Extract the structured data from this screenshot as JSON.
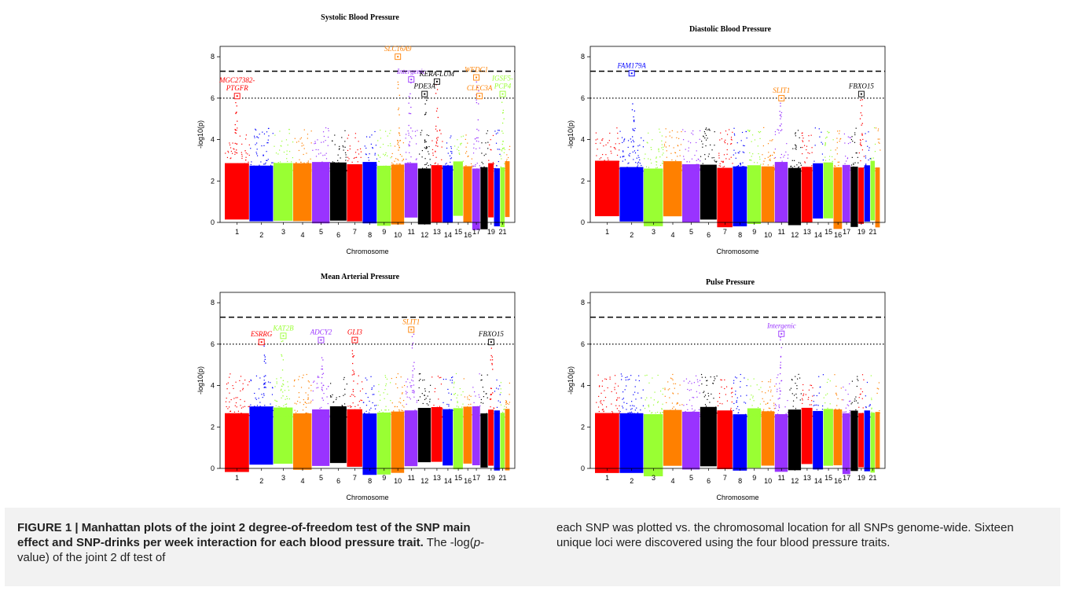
{
  "caption": {
    "figure_label": "FIGURE 1 | ",
    "bold_title": "Manhattan plots of the joint 2 degree-of-freedom test of the SNP main effect and SNP-drinks per week interaction for each blood pressure trait.",
    "left_rest_1": " The -log(",
    "left_p": "p",
    "left_rest_2": "-value) of the joint 2 df test of",
    "right_text": "each SNP was plotted vs. the chromosomal location for all SNPs genome-wide. Sixteen unique loci were discovered using the four blood pressure traits."
  },
  "chart_data": [
    {
      "type": "scatter",
      "title": "Systolic Blood Pressure",
      "xlabel": "Chromosome",
      "ylabel": "-log10(p)",
      "ylim": [
        0,
        8.5
      ],
      "yticks": [
        0,
        2,
        4,
        6,
        8
      ],
      "xtick_labels": [
        "1",
        "2",
        "3",
        "4",
        "5",
        "6",
        "7",
        "8",
        "9",
        "10",
        "11",
        "12",
        "13",
        "14",
        "15",
        "16",
        "17",
        "19",
        "21"
      ],
      "genome_wide_threshold": 7.3,
      "suggestive_threshold": 6.0,
      "chromosome_colors": [
        "#ff0000",
        "#0000ff",
        "#99ff33",
        "#ff8000",
        "#9933ff",
        "#000000"
      ],
      "peaks": [
        {
          "chr": 1,
          "peak": 6.1,
          "label": "MGC27382-PTGFR",
          "label_lines": [
            "MGC27382-",
            "PTGFR"
          ],
          "color": "#ff0000"
        },
        {
          "chr": 10,
          "peak": 8.0,
          "label": "SLC16A9",
          "color": "#ff8000"
        },
        {
          "chr": 11,
          "peak": 6.9,
          "label": "Intergenic",
          "color": "#9933ff"
        },
        {
          "chr": 12,
          "peak": 6.2,
          "label": "PDE3A",
          "color": "#000000"
        },
        {
          "chr": 13,
          "peak": 6.8,
          "label": "KERA-LUM",
          "color": "#000000"
        },
        {
          "chr": 17,
          "peak": 7.0,
          "label": "WFDC1",
          "color": "#ff8000"
        },
        {
          "chr": 17,
          "peak": 6.1,
          "label": "CLEC3A",
          "color": "#ff8000"
        },
        {
          "chr": 21,
          "peak": 6.2,
          "label": "IGSF5-PCP4",
          "label_lines": [
            "IGSF5-",
            "PCP4"
          ],
          "color": "#99ff33"
        }
      ]
    },
    {
      "type": "scatter",
      "title": "Diastolic Blood Pressure",
      "xlabel": "Chromosome",
      "ylabel": "-log10(p)",
      "ylim": [
        0,
        8.5
      ],
      "yticks": [
        0,
        2,
        4,
        6,
        8
      ],
      "xtick_labels": [
        "1",
        "2",
        "3",
        "4",
        "5",
        "6",
        "7",
        "8",
        "9",
        "10",
        "11",
        "12",
        "13",
        "14",
        "15",
        "16",
        "17",
        "19",
        "21"
      ],
      "genome_wide_threshold": 7.3,
      "suggestive_threshold": 6.0,
      "chromosome_colors": [
        "#ff0000",
        "#0000ff",
        "#99ff33",
        "#ff8000",
        "#9933ff",
        "#000000"
      ],
      "peaks": [
        {
          "chr": 2,
          "peak": 7.2,
          "label": "FAM179A",
          "color": "#0000ff"
        },
        {
          "chr": 11,
          "peak": 6.0,
          "label": "SLIT1",
          "color": "#ff8000"
        },
        {
          "chr": 19,
          "peak": 6.2,
          "label": "FBXO15",
          "color": "#000000"
        }
      ]
    },
    {
      "type": "scatter",
      "title": "Mean Arterial Pressure",
      "xlabel": "Chromosome",
      "ylabel": "-log10(p)",
      "ylim": [
        0,
        8.5
      ],
      "yticks": [
        0,
        2,
        4,
        6,
        8
      ],
      "xtick_labels": [
        "1",
        "2",
        "3",
        "4",
        "5",
        "6",
        "7",
        "8",
        "9",
        "10",
        "11",
        "12",
        "13",
        "14",
        "15",
        "16",
        "17",
        "19",
        "21"
      ],
      "genome_wide_threshold": 7.3,
      "suggestive_threshold": 6.0,
      "chromosome_colors": [
        "#ff0000",
        "#0000ff",
        "#99ff33",
        "#ff8000",
        "#9933ff",
        "#000000"
      ],
      "peaks": [
        {
          "chr": 2,
          "peak": 6.1,
          "label": "ESRRG",
          "color": "#ff0000"
        },
        {
          "chr": 3,
          "peak": 6.4,
          "label": "KAT2B",
          "color": "#99ff33"
        },
        {
          "chr": 5,
          "peak": 6.2,
          "label": "ADCY2",
          "color": "#9933ff"
        },
        {
          "chr": 7,
          "peak": 6.2,
          "label": "GLI3",
          "color": "#ff0000"
        },
        {
          "chr": 11,
          "peak": 6.7,
          "label": "SLIT1",
          "color": "#ff8000"
        },
        {
          "chr": 19,
          "peak": 6.1,
          "label": "FBXO15",
          "color": "#000000"
        }
      ]
    },
    {
      "type": "scatter",
      "title": "Pulse Pressure",
      "xlabel": "Chromosome",
      "ylabel": "-log10(p)",
      "ylim": [
        0,
        8.5
      ],
      "yticks": [
        0,
        2,
        4,
        6,
        8
      ],
      "xtick_labels": [
        "1",
        "2",
        "3",
        "4",
        "5",
        "6",
        "7",
        "8",
        "9",
        "10",
        "11",
        "12",
        "13",
        "14",
        "15",
        "16",
        "17",
        "19",
        "21"
      ],
      "genome_wide_threshold": 7.3,
      "suggestive_threshold": 6.0,
      "chromosome_colors": [
        "#ff0000",
        "#0000ff",
        "#99ff33",
        "#ff8000",
        "#9933ff",
        "#000000"
      ],
      "peaks": [
        {
          "chr": 11,
          "peak": 6.5,
          "label": "Intergenic",
          "color": "#9933ff"
        }
      ]
    }
  ]
}
